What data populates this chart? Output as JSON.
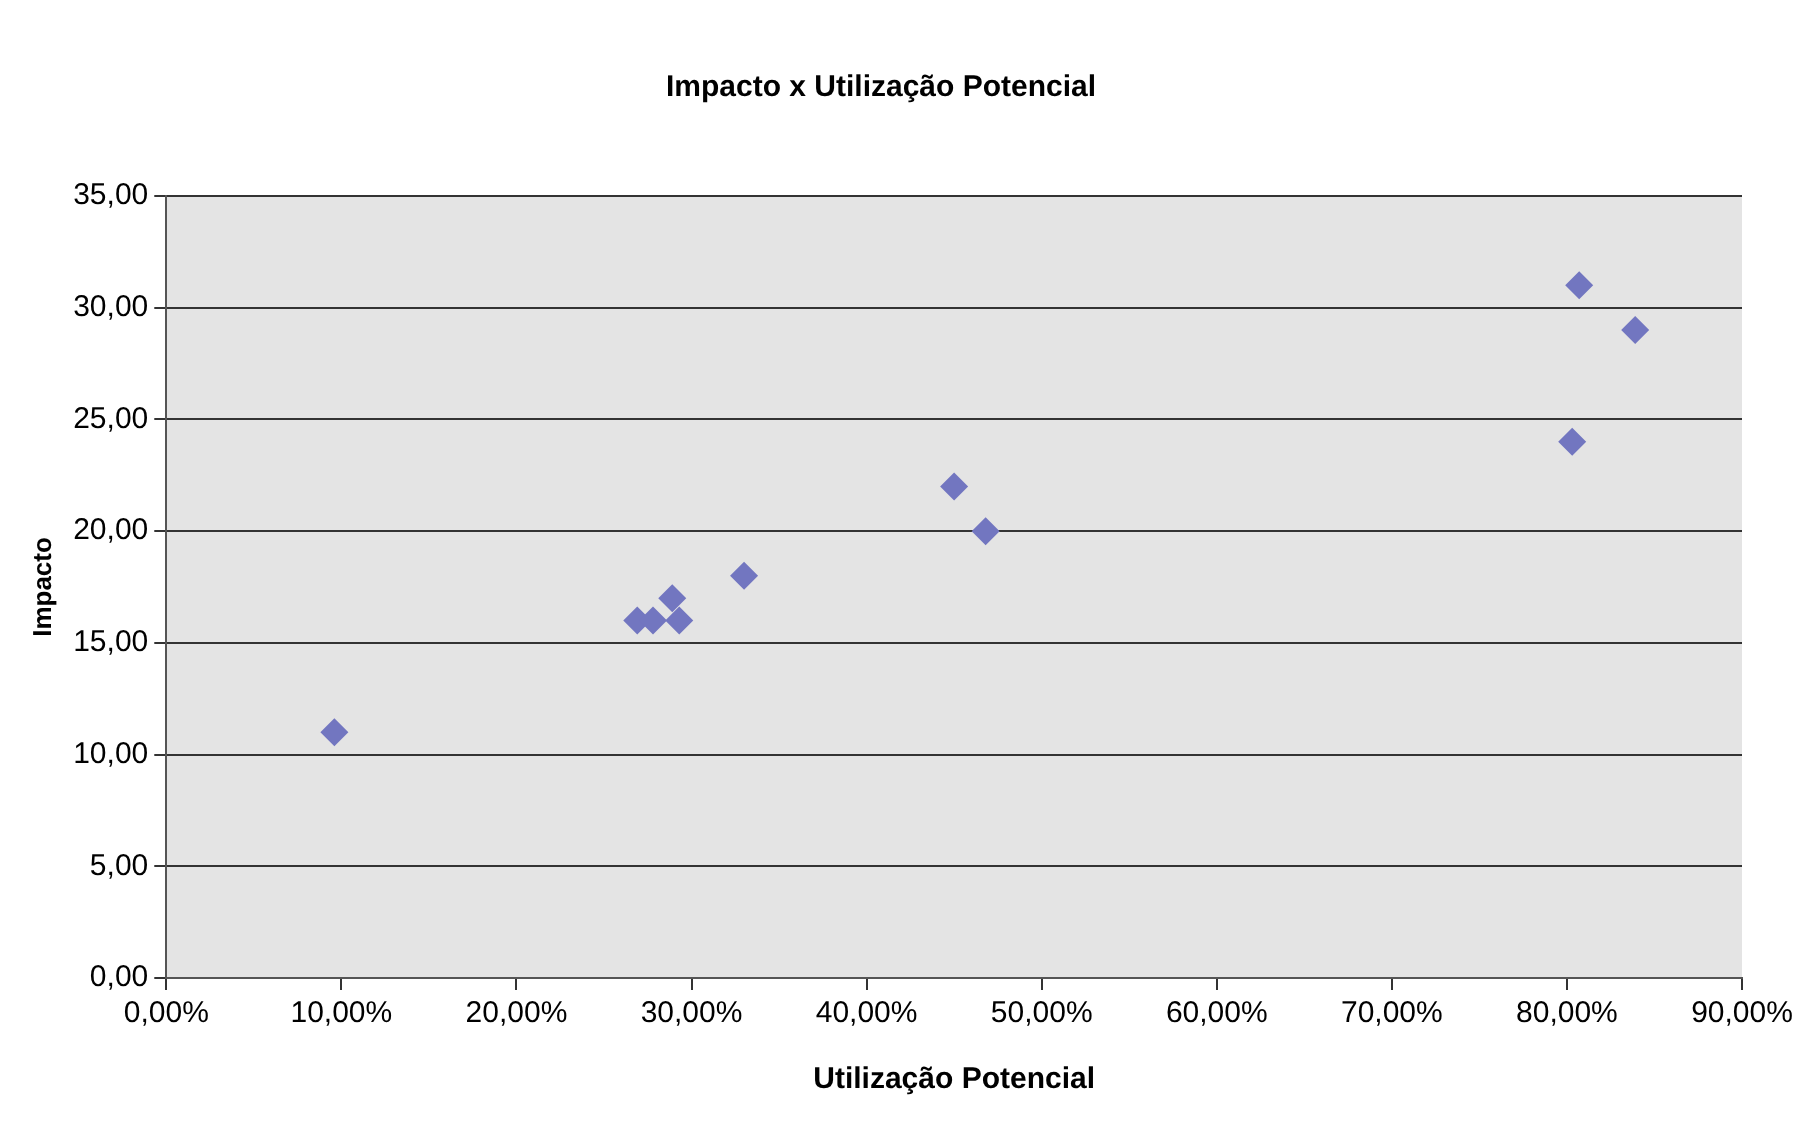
{
  "chart_data": {
    "type": "scatter",
    "title": "Impacto x Utilização Potencial",
    "xlabel": "Utilização Potencial",
    "ylabel": "Impacto",
    "x": [
      9.6,
      26.9,
      27.8,
      28.9,
      29.3,
      33.0,
      45.0,
      46.8,
      80.3,
      80.7,
      83.9
    ],
    "values": [
      11,
      16,
      16,
      17,
      16,
      18,
      22,
      20,
      24,
      31,
      29
    ],
    "color": "#7276c0",
    "marker": "diamond",
    "grid": "y",
    "legend": false,
    "xlim": [
      0,
      90
    ],
    "xticks": [
      {
        "value": 0,
        "label": "0,00%"
      },
      {
        "value": 10,
        "label": "10,00%"
      },
      {
        "value": 20,
        "label": "20,00%"
      },
      {
        "value": 30,
        "label": "30,00%"
      },
      {
        "value": 40,
        "label": "40,00%"
      },
      {
        "value": 50,
        "label": "50,00%"
      },
      {
        "value": 60,
        "label": "60,00%"
      },
      {
        "value": 70,
        "label": "70,00%"
      },
      {
        "value": 80,
        "label": "80,00%"
      },
      {
        "value": 90,
        "label": "90,00%"
      }
    ],
    "ylim": [
      0,
      35
    ],
    "yticks": [
      {
        "value": 0,
        "label": "0,00"
      },
      {
        "value": 5,
        "label": "5,00"
      },
      {
        "value": 10,
        "label": "10,00"
      },
      {
        "value": 15,
        "label": "15,00"
      },
      {
        "value": 20,
        "label": "20,00"
      },
      {
        "value": 25,
        "label": "25,00"
      },
      {
        "value": 30,
        "label": "30,00"
      },
      {
        "value": 35,
        "label": "35,00"
      }
    ]
  }
}
